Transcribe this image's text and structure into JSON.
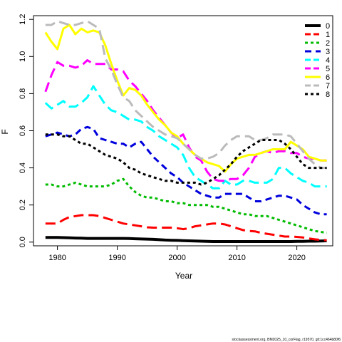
{
  "chart_data": {
    "type": "line",
    "title": "",
    "xlabel": "Year",
    "ylabel": "F",
    "xlim": [
      1976,
      2026
    ],
    "ylim": [
      -0.02,
      1.22
    ],
    "xticks": [
      1980,
      1990,
      2000,
      2010,
      2020
    ],
    "yticks": [
      0.0,
      0.2,
      0.4,
      0.6,
      0.8,
      1.0,
      1.2
    ],
    "grid": false,
    "legend_position": "top-right",
    "x": [
      1978,
      1979,
      1980,
      1981,
      1982,
      1983,
      1984,
      1985,
      1986,
      1987,
      1988,
      1989,
      1990,
      1991,
      1992,
      1993,
      1994,
      1995,
      1996,
      1997,
      1998,
      1999,
      2000,
      2001,
      2002,
      2003,
      2004,
      2005,
      2006,
      2007,
      2008,
      2009,
      2010,
      2011,
      2012,
      2013,
      2014,
      2015,
      2016,
      2017,
      2018,
      2019,
      2020,
      2021,
      2022,
      2023,
      2024,
      2025
    ],
    "series": [
      {
        "name": "0",
        "color": "#000000",
        "dash": "solid",
        "width": 4,
        "values": [
          0.025,
          0.025,
          0.025,
          0.024,
          0.023,
          0.022,
          0.021,
          0.02,
          0.02,
          0.02,
          0.02,
          0.02,
          0.02,
          0.02,
          0.019,
          0.018,
          0.017,
          0.016,
          0.015,
          0.013,
          0.011,
          0.01,
          0.009,
          0.008,
          0.007,
          0.006,
          0.005,
          0.004,
          0.003,
          0.003,
          0.003,
          0.003,
          0.003,
          0.003,
          0.003,
          0.003,
          0.003,
          0.003,
          0.003,
          0.003,
          0.003,
          0.003,
          0.004,
          0.004,
          0.005,
          0.005,
          0.006,
          0.007
        ]
      },
      {
        "name": "1",
        "color": "#ff0000",
        "dash": "long",
        "width": 3,
        "values": [
          0.1,
          0.1,
          0.1,
          0.12,
          0.135,
          0.14,
          0.145,
          0.145,
          0.145,
          0.14,
          0.13,
          0.12,
          0.11,
          0.1,
          0.095,
          0.09,
          0.085,
          0.08,
          0.078,
          0.078,
          0.078,
          0.078,
          0.075,
          0.07,
          0.075,
          0.085,
          0.09,
          0.095,
          0.1,
          0.1,
          0.095,
          0.085,
          0.075,
          0.065,
          0.06,
          0.058,
          0.05,
          0.045,
          0.04,
          0.035,
          0.03,
          0.03,
          0.028,
          0.025,
          0.02,
          0.015,
          0.012,
          0.01
        ]
      },
      {
        "name": "2",
        "color": "#00bb00",
        "dash": "short",
        "width": 3,
        "values": [
          0.31,
          0.31,
          0.3,
          0.3,
          0.31,
          0.32,
          0.31,
          0.3,
          0.3,
          0.3,
          0.3,
          0.31,
          0.33,
          0.34,
          0.3,
          0.27,
          0.25,
          0.24,
          0.24,
          0.23,
          0.22,
          0.22,
          0.21,
          0.21,
          0.2,
          0.2,
          0.2,
          0.2,
          0.19,
          0.19,
          0.18,
          0.17,
          0.16,
          0.15,
          0.15,
          0.14,
          0.14,
          0.14,
          0.13,
          0.12,
          0.11,
          0.1,
          0.09,
          0.08,
          0.07,
          0.06,
          0.055,
          0.05
        ]
      },
      {
        "name": "3",
        "color": "#0000dd",
        "dash": "medium",
        "width": 3,
        "values": [
          0.57,
          0.58,
          0.59,
          0.58,
          0.57,
          0.58,
          0.61,
          0.62,
          0.61,
          0.56,
          0.55,
          0.54,
          0.53,
          0.53,
          0.51,
          0.53,
          0.54,
          0.5,
          0.46,
          0.43,
          0.4,
          0.37,
          0.35,
          0.32,
          0.3,
          0.28,
          0.26,
          0.25,
          0.24,
          0.24,
          0.26,
          0.26,
          0.26,
          0.26,
          0.24,
          0.22,
          0.22,
          0.23,
          0.24,
          0.25,
          0.25,
          0.24,
          0.23,
          0.2,
          0.18,
          0.16,
          0.15,
          0.15
        ]
      },
      {
        "name": "4",
        "color": "#00ffff",
        "dash": "long",
        "width": 3,
        "values": [
          0.75,
          0.72,
          0.74,
          0.76,
          0.73,
          0.73,
          0.75,
          0.78,
          0.84,
          0.79,
          0.74,
          0.71,
          0.7,
          0.68,
          0.66,
          0.66,
          0.65,
          0.62,
          0.6,
          0.57,
          0.55,
          0.53,
          0.51,
          0.47,
          0.4,
          0.35,
          0.33,
          0.31,
          0.29,
          0.29,
          0.33,
          0.31,
          0.31,
          0.33,
          0.33,
          0.32,
          0.32,
          0.32,
          0.34,
          0.4,
          0.4,
          0.37,
          0.35,
          0.33,
          0.32,
          0.3,
          0.3,
          0.3
        ]
      },
      {
        "name": "5",
        "color": "#ff00ff",
        "dash": "long",
        "width": 3,
        "values": [
          0.81,
          0.9,
          0.97,
          0.95,
          0.95,
          0.94,
          0.95,
          0.98,
          0.96,
          0.96,
          0.96,
          0.93,
          0.93,
          0.92,
          0.87,
          0.84,
          0.8,
          0.76,
          0.71,
          0.67,
          0.63,
          0.59,
          0.56,
          0.58,
          0.51,
          0.46,
          0.44,
          0.38,
          0.34,
          0.33,
          0.33,
          0.34,
          0.34,
          0.36,
          0.4,
          0.46,
          0.48,
          0.49,
          0.48,
          0.49,
          0.49,
          0.48,
          0.48,
          0.46,
          0.45,
          0.45,
          0.44,
          0.44
        ]
      },
      {
        "name": "6",
        "color": "#ffff00",
        "dash": "solid",
        "width": 3,
        "values": [
          1.13,
          1.08,
          1.04,
          1.15,
          1.17,
          1.12,
          1.15,
          1.13,
          1.14,
          1.13,
          1.06,
          0.96,
          0.87,
          0.79,
          0.83,
          0.82,
          0.79,
          0.74,
          0.7,
          0.66,
          0.63,
          0.59,
          0.57,
          0.53,
          0.5,
          0.47,
          0.45,
          0.43,
          0.42,
          0.41,
          0.38,
          0.42,
          0.45,
          0.46,
          0.47,
          0.47,
          0.48,
          0.49,
          0.5,
          0.5,
          0.5,
          0.54,
          0.52,
          0.5,
          0.46,
          0.45,
          0.44,
          0.44
        ]
      },
      {
        "name": "7",
        "color": "#bbbbbb",
        "dash": "long",
        "width": 3,
        "values": [
          1.17,
          1.17,
          1.19,
          1.18,
          1.17,
          1.17,
          1.18,
          1.19,
          1.17,
          1.15,
          0.99,
          0.93,
          0.85,
          0.78,
          0.76,
          0.71,
          0.68,
          0.65,
          0.62,
          0.6,
          0.58,
          0.57,
          0.56,
          0.53,
          0.5,
          0.47,
          0.45,
          0.45,
          0.46,
          0.48,
          0.52,
          0.55,
          0.57,
          0.57,
          0.57,
          0.55,
          0.55,
          0.56,
          0.58,
          0.58,
          0.58,
          0.57,
          0.53,
          0.49,
          0.45,
          0.42,
          0.4,
          0.4
        ]
      },
      {
        "name": "8",
        "color": "#000000",
        "dash": "short",
        "width": 3,
        "values": [
          0.58,
          0.58,
          0.58,
          0.57,
          0.57,
          0.55,
          0.53,
          0.53,
          0.51,
          0.49,
          0.47,
          0.46,
          0.45,
          0.43,
          0.4,
          0.39,
          0.37,
          0.36,
          0.35,
          0.34,
          0.33,
          0.33,
          0.32,
          0.32,
          0.32,
          0.32,
          0.31,
          0.32,
          0.34,
          0.36,
          0.39,
          0.42,
          0.46,
          0.49,
          0.51,
          0.53,
          0.55,
          0.55,
          0.55,
          0.55,
          0.53,
          0.5,
          0.46,
          0.42,
          0.4,
          0.4,
          0.4,
          0.4
        ]
      }
    ],
    "footnote": "stockassessment.org, BM2025_10_corFlag, r19570, git:1cc464b80f6"
  }
}
